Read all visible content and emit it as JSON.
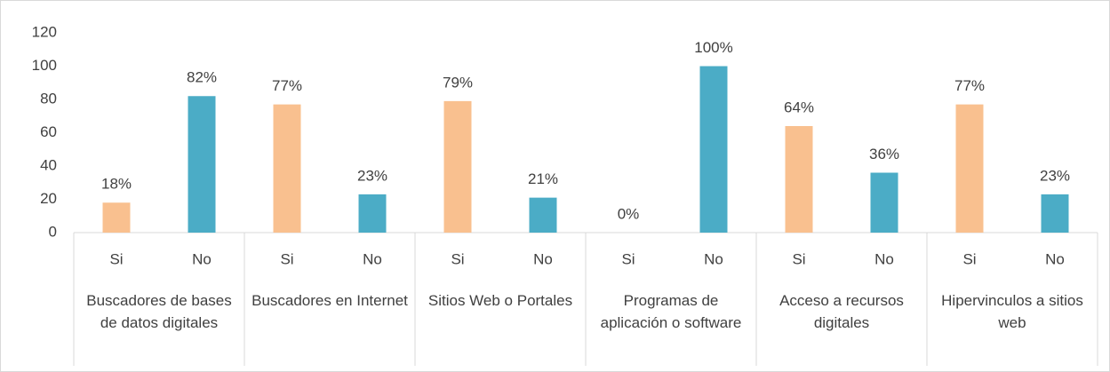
{
  "chart_data": {
    "type": "bar",
    "categories": [
      "Buscadores de bases de datos digitales",
      "Buscadores en Internet",
      "Sitios Web o Portales",
      "Programas de aplicación o software",
      "Acceso a recursos digitales",
      "Hipervinculos a sitios web"
    ],
    "series": [
      {
        "name": "Si",
        "color": "#f9c08f",
        "values": [
          18,
          77,
          79,
          0,
          64,
          77
        ],
        "value_labels": [
          "18%",
          "77%",
          "79%",
          "0%",
          "64%",
          "77%"
        ]
      },
      {
        "name": "No",
        "color": "#4bacc6",
        "values": [
          82,
          23,
          21,
          100,
          36,
          23
        ],
        "value_labels": [
          "82%",
          "23%",
          "21%",
          "100%",
          "36%",
          "23%"
        ]
      }
    ],
    "ylim": [
      0,
      120
    ],
    "yticks": [
      0,
      20,
      40,
      60,
      80,
      100,
      120
    ],
    "grid": false
  }
}
